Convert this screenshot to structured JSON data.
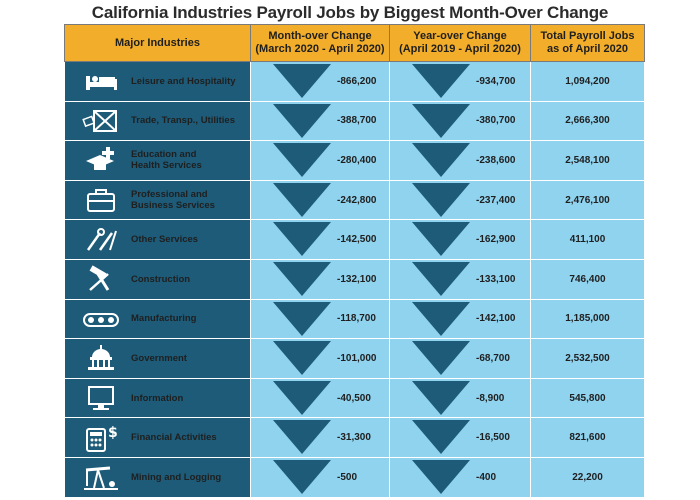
{
  "title": "California Industries Payroll Jobs by Biggest Month-Over Change",
  "headers": {
    "industry": "Major Industries",
    "mom": "Month-over Change\n(March 2020 - April 2020)",
    "yoy": "Year-over Change\n(April 2019 - April 2020)",
    "total": "Total Payroll Jobs\nas of April 2020"
  },
  "colors": {
    "header": "#f2ad2a",
    "industry_cell": "#1d5b78",
    "value_cell": "#8fd3ef",
    "arrow": "#1d5b78"
  },
  "rows": [
    {
      "industry": "Leisure and Hospitality",
      "icon": "bed-icon",
      "mom": "-866,200",
      "yoy": "-934,700",
      "total": "1,094,200"
    },
    {
      "industry": "Trade, Transp., Utilities",
      "icon": "shipping-crate-icon",
      "mom": "-388,700",
      "yoy": "-380,700",
      "total": "2,666,300"
    },
    {
      "industry": "Education and\nHealth Services",
      "icon": "graduation-cap-medical-cross-icon",
      "mom": "-280,400",
      "yoy": "-238,600",
      "total": "2,548,100"
    },
    {
      "industry": "Professional and\nBusiness Services",
      "icon": "briefcase-icon",
      "mom": "-242,800",
      "yoy": "-237,400",
      "total": "2,476,100"
    },
    {
      "industry": "Other Services",
      "icon": "tools-icon",
      "mom": "-142,500",
      "yoy": "-162,900",
      "total": "411,100"
    },
    {
      "industry": "Construction",
      "icon": "hammer-wrench-icon",
      "mom": "-132,100",
      "yoy": "-133,100",
      "total": "746,400"
    },
    {
      "industry": "Manufacturing",
      "icon": "conveyor-belt-icon",
      "mom": "-118,700",
      "yoy": "-142,100",
      "total": "1,185,000"
    },
    {
      "industry": "Government",
      "icon": "capitol-building-icon",
      "mom": "-101,000",
      "yoy": "-68,700",
      "total": "2,532,500"
    },
    {
      "industry": "Information",
      "icon": "computer-monitor-icon",
      "mom": "-40,500",
      "yoy": "-8,900",
      "total": "545,800"
    },
    {
      "industry": "Financial Activities",
      "icon": "calculator-dollar-icon",
      "mom": "-31,300",
      "yoy": "-16,500",
      "total": "821,600"
    },
    {
      "industry": "Mining and Logging",
      "icon": "oil-pump-icon",
      "mom": "-500",
      "yoy": "-400",
      "total": "22,200"
    }
  ]
}
